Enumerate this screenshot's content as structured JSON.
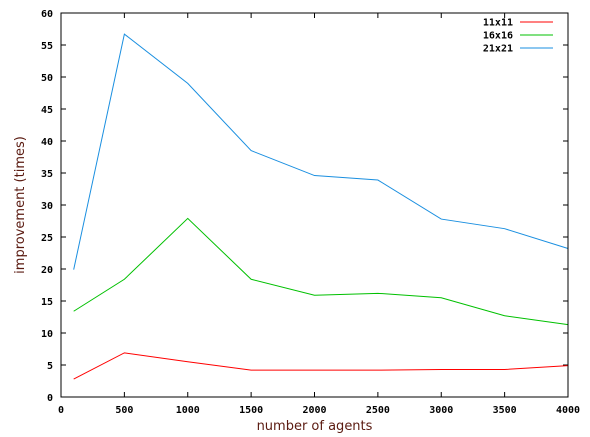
{
  "chart_data": {
    "type": "line",
    "title": "",
    "xlabel": "number of agents",
    "ylabel": "improvement (times)",
    "xlim": [
      0,
      4000
    ],
    "ylim": [
      0,
      60
    ],
    "x_ticks": [
      0,
      500,
      1000,
      1500,
      2000,
      2500,
      3000,
      3500,
      4000
    ],
    "y_ticks": [
      0,
      5,
      10,
      15,
      20,
      25,
      30,
      35,
      40,
      45,
      50,
      55,
      60
    ],
    "grid": false,
    "legend_position": "top-right",
    "x": [
      100,
      500,
      1000,
      1500,
      2000,
      2500,
      3000,
      3500,
      4000
    ],
    "series": [
      {
        "name": "11x11",
        "color": "#ff0000",
        "values": [
          2.8,
          6.9,
          5.5,
          4.2,
          4.2,
          4.2,
          4.3,
          4.3,
          4.9
        ]
      },
      {
        "name": "16x16",
        "color": "#00c000",
        "values": [
          13.4,
          18.4,
          27.9,
          18.4,
          15.9,
          16.2,
          15.5,
          12.7,
          11.3
        ]
      },
      {
        "name": "21x21",
        "color": "#1a8fe0",
        "values": [
          19.9,
          56.7,
          49.0,
          38.5,
          34.6,
          33.9,
          27.8,
          26.3,
          23.2
        ]
      }
    ]
  }
}
